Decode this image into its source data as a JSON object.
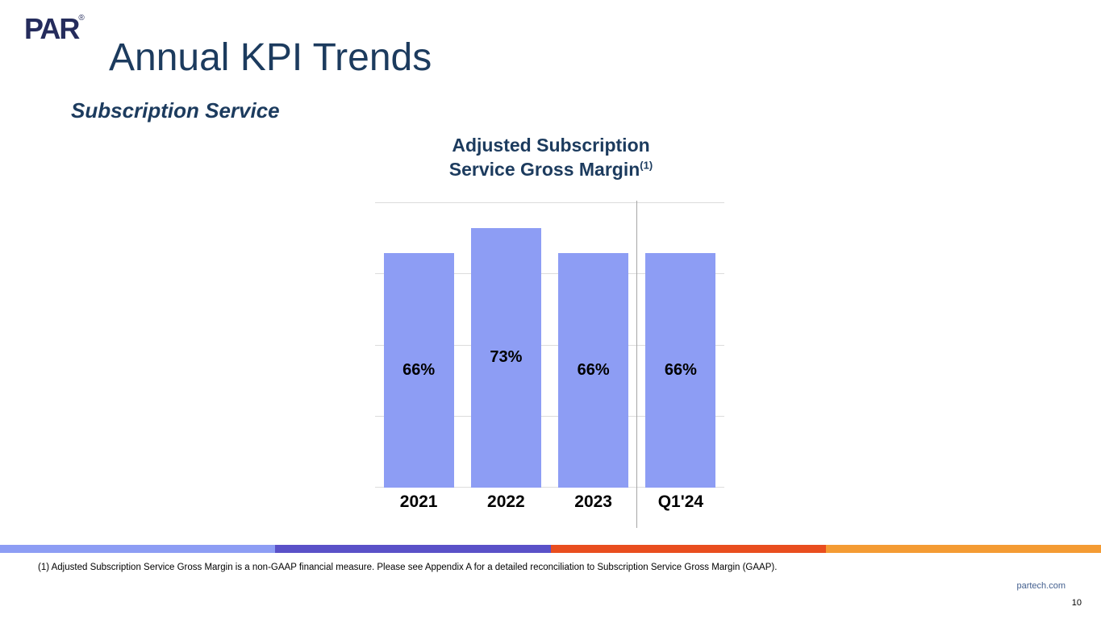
{
  "slide": {
    "logo_text": "PAR",
    "logo_reg": "®",
    "title": "Annual KPI Trends",
    "subtitle": "Subscription Service",
    "footnote": "(1) Adjusted Subscription Service Gross Margin is a non-GAAP financial measure. Please see Appendix A for a detailed reconciliation to Subscription Service Gross Margin (GAAP).",
    "website": "partech.com",
    "page_number": "10"
  },
  "chart_data": {
    "type": "bar",
    "title": "Adjusted Subscription Service Gross Margin(1)",
    "title_line1": "Adjusted Subscription",
    "title_line2": "Service Gross Margin",
    "title_superscript": "(1)",
    "categories": [
      "2021",
      "2022",
      "2023",
      "Q1'24"
    ],
    "values": [
      66,
      73,
      66,
      66
    ],
    "value_labels": [
      "66%",
      "73%",
      "66%",
      "66%"
    ],
    "xlabel": "",
    "ylabel": "",
    "ylim": [
      0,
      80
    ],
    "gridline_step": 20,
    "grid": true,
    "legend": "none",
    "bar_color": "#8D9DF4",
    "separator_after_category": "2023"
  },
  "colors": {
    "title_text": "#1C3B5E",
    "logo_navy": "#252C5C",
    "bar_fill": "#8D9DF4",
    "gridline": "#DCDCDC",
    "separator_line": "#A6A6A6",
    "website_text": "#44608F",
    "accent_stripe": [
      "#8D9DF4",
      "#5A51C8",
      "#E94E1F",
      "#F49B33"
    ]
  }
}
